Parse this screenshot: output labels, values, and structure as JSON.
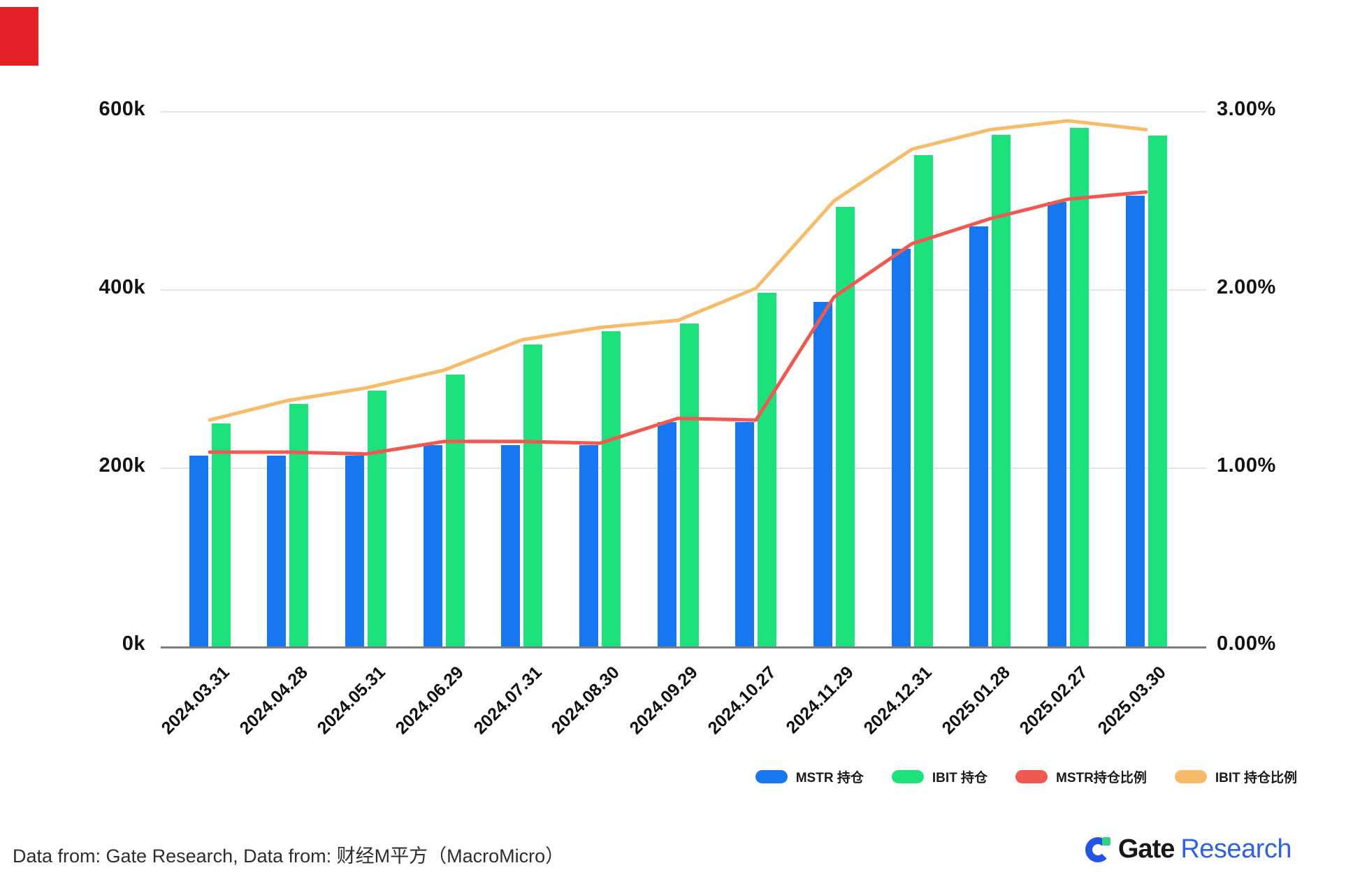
{
  "corner_marker": {
    "visible": true,
    "color": "#e42127"
  },
  "chart_data": {
    "type": "combo",
    "categories": [
      "2024.03.31",
      "2024.04.28",
      "2024.05.31",
      "2024.06.29",
      "2024.07.31",
      "2024.08.30",
      "2024.09.29",
      "2024.10.27",
      "2024.11.29",
      "2024.12.31",
      "2025.01.28",
      "2025.02.27",
      "2025.03.30"
    ],
    "series": [
      {
        "name": "MSTR 持仓",
        "type": "bar",
        "axis": "left",
        "color": "#1677f0",
        "values": [
          214000,
          214000,
          214000,
          226000,
          226000,
          226000,
          252000,
          252000,
          387000,
          446000,
          471000,
          499000,
          506000
        ]
      },
      {
        "name": "IBIT 持仓",
        "type": "bar",
        "axis": "left",
        "color": "#1de17d",
        "values": [
          250000,
          272000,
          287000,
          305000,
          339000,
          354000,
          362000,
          397000,
          493000,
          551000,
          574000,
          582000,
          573000
        ]
      },
      {
        "name": "MSTR持仓比例",
        "type": "line",
        "axis": "right",
        "color": "#f0594f",
        "values": [
          1.09,
          1.09,
          1.08,
          1.15,
          1.15,
          1.14,
          1.28,
          1.27,
          1.96,
          2.26,
          2.4,
          2.51,
          2.55
        ]
      },
      {
        "name": "IBIT 持仓比例",
        "type": "line",
        "axis": "right",
        "color": "#f7bc69",
        "values": [
          1.27,
          1.38,
          1.45,
          1.55,
          1.72,
          1.79,
          1.83,
          2.01,
          2.5,
          2.79,
          2.9,
          2.95,
          2.9
        ]
      }
    ],
    "left_axis": {
      "min": 0,
      "max": 600000,
      "ticks": [
        {
          "label": "600k",
          "value": 600000
        },
        {
          "label": "400k",
          "value": 400000
        },
        {
          "label": "200k",
          "value": 200000
        },
        {
          "label": "0k",
          "value": 0
        }
      ]
    },
    "right_axis": {
      "min": 0,
      "max": 3,
      "ticks": [
        {
          "label": "3.00%",
          "value": 3
        },
        {
          "label": "2.00%",
          "value": 2
        },
        {
          "label": "1.00%",
          "value": 1
        },
        {
          "label": "0.00%",
          "value": 0
        }
      ]
    },
    "grid": true,
    "legend_position": "bottom-right"
  },
  "footer": {
    "source_text": "Data from: Gate Research, Data from: 财经M平方（MacroMicro）",
    "logo_gate": "Gate",
    "logo_research": "Research"
  },
  "theme": {
    "gridline": "#e4e4e4",
    "axis_line": "#7d7d7d",
    "axis_text": "#121212",
    "logo_blue": "#2354e6",
    "logo_green": "#2ed47e"
  }
}
